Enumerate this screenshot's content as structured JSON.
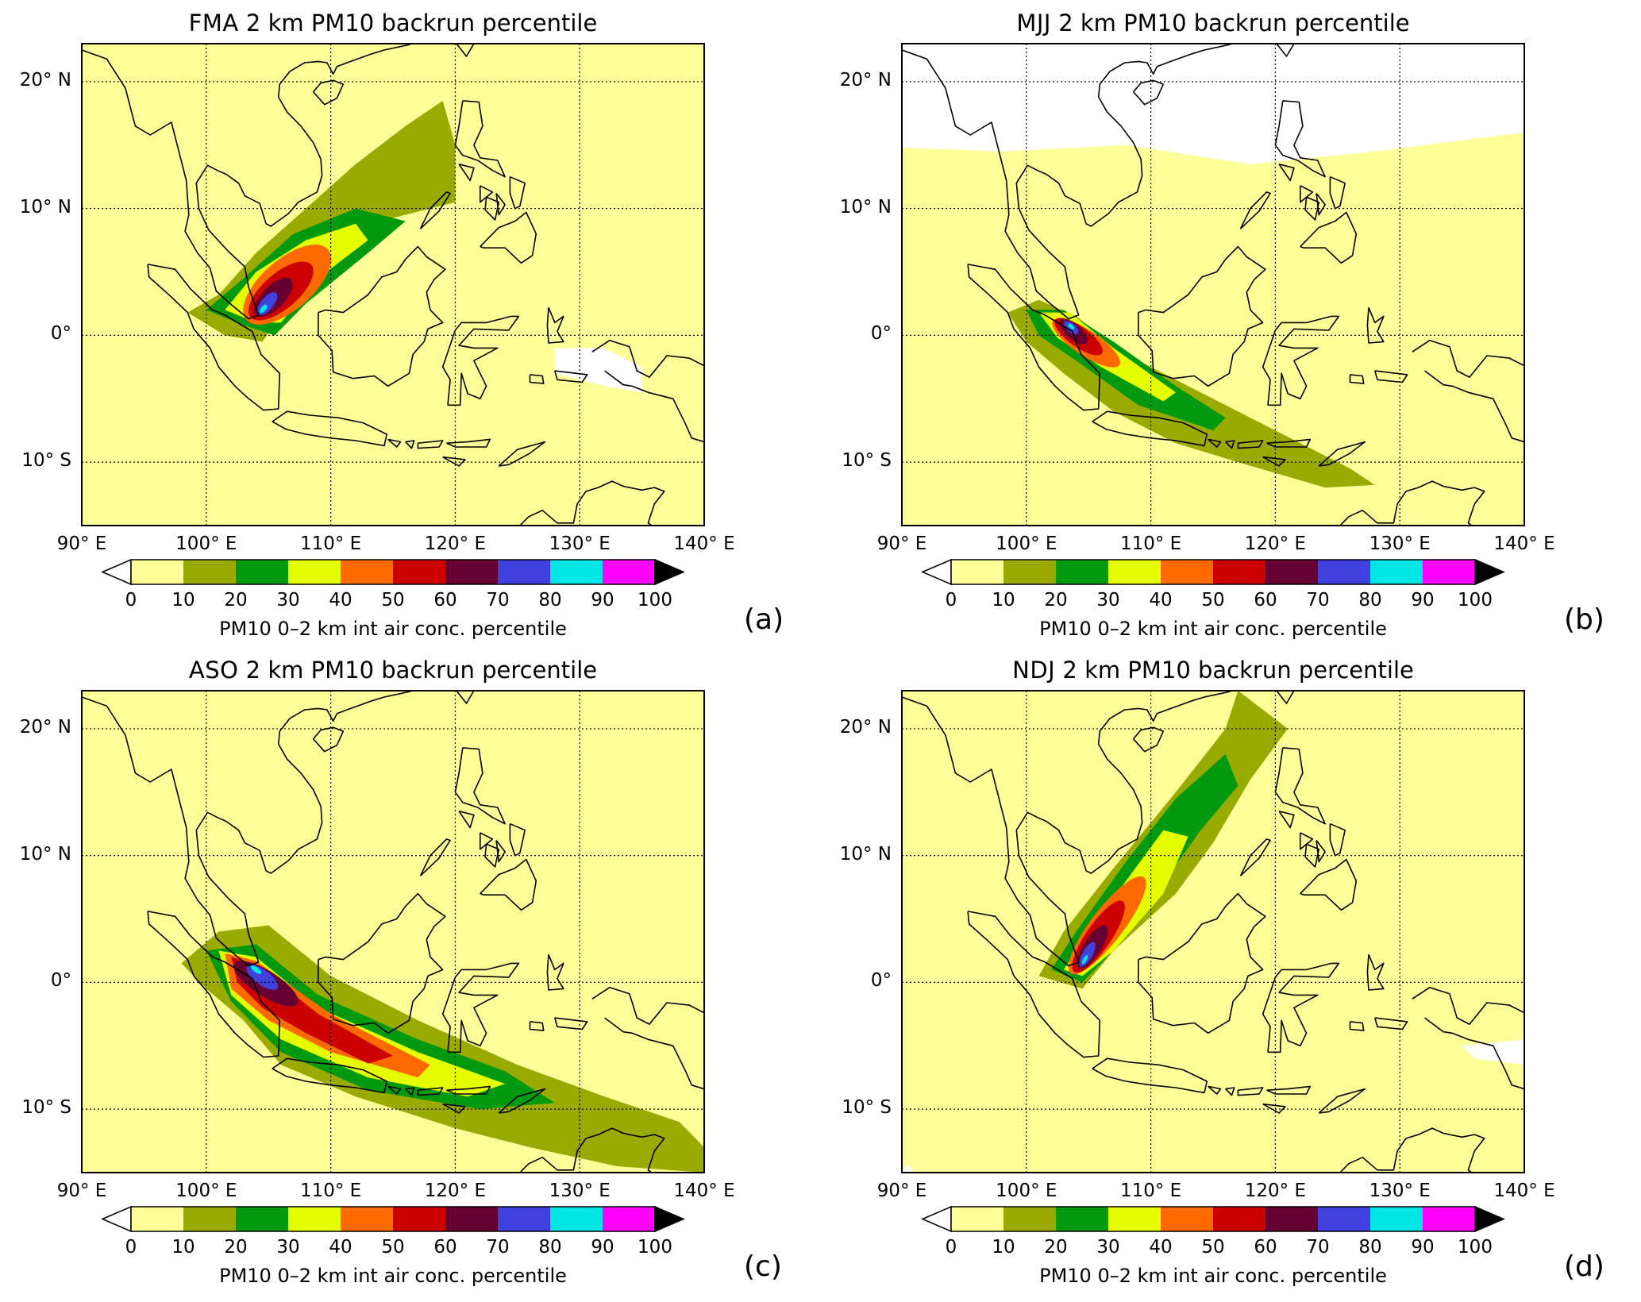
{
  "panels": [
    {
      "season": "FMA",
      "title_rest": "2 km PM10 backrun percentile",
      "label": "(a)"
    },
    {
      "season": "MJJ",
      "title_rest": "2 km PM10 backrun percentile",
      "label": "(b)"
    },
    {
      "season": "ASO",
      "title_rest": "2 km PM10 backrun percentile",
      "label": "(c)"
    },
    {
      "season": "NDJ",
      "title_rest": "2 km PM10 backrun percentile",
      "label": "(d)"
    }
  ],
  "map": {
    "lon_range": [
      90,
      140
    ],
    "lat_range": [
      -15,
      23
    ],
    "lat_ticks": [
      {
        "value": 20,
        "label": "20° N"
      },
      {
        "value": 10,
        "label": "10° N"
      },
      {
        "value": 0,
        "label": "0°"
      },
      {
        "value": -10,
        "label": "10° S"
      }
    ],
    "lon_ticks": [
      {
        "value": 90,
        "label": "90° E"
      },
      {
        "value": 100,
        "label": "100° E"
      },
      {
        "value": 110,
        "label": "110° E"
      },
      {
        "value": 120,
        "label": "120° E"
      },
      {
        "value": 130,
        "label": "130° E"
      },
      {
        "value": 140,
        "label": "140° E"
      }
    ],
    "grid": true
  },
  "colorbar": {
    "ticks": [
      "0",
      "10",
      "20",
      "30",
      "40",
      "50",
      "60",
      "70",
      "80",
      "90",
      "100"
    ],
    "label": "PM10 0–2 km int air conc. percentile",
    "under_color": "#ffffff",
    "over_color": "#000000",
    "colors": [
      "#ffff99",
      "#99aa00",
      "#00990f",
      "#e6ff00",
      "#ff6a00",
      "#cc0000",
      "#660033",
      "#4040dd",
      "#00e6e6",
      "#ff00ff"
    ],
    "background_color": "#ffff99"
  }
}
